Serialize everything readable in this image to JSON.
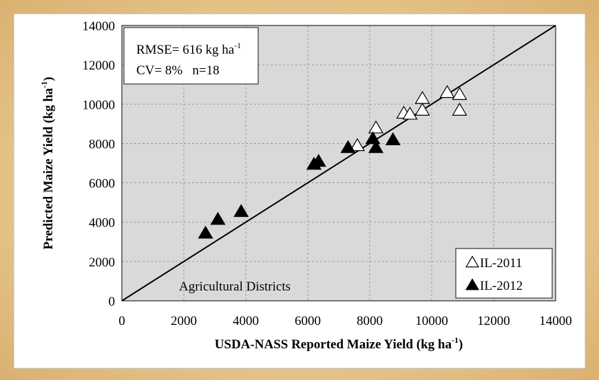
{
  "chart_data": {
    "type": "scatter",
    "x_label": {
      "text": "USDA-NASS Reported Maize Yield (kg ha",
      "sup": "-1",
      "tail": ")"
    },
    "y_label": {
      "text": "Predicted Maize Yield (kg ha",
      "sup": "-1",
      "tail": ")"
    },
    "annotations": [
      {
        "text": "RMSE= 616 kg ha",
        "sup": "-1"
      },
      {
        "text": "CV= 8%   n=18"
      },
      {
        "text": "Agricultural Districts"
      }
    ],
    "xlim": [
      0,
      14000
    ],
    "ylim": [
      0,
      14000
    ],
    "xticks": [
      0,
      2000,
      4000,
      6000,
      8000,
      10000,
      12000,
      14000
    ],
    "yticks": [
      0,
      2000,
      4000,
      6000,
      8000,
      10000,
      12000,
      14000
    ],
    "grid": true,
    "identity_line": true,
    "legend": "lower right",
    "series": [
      {
        "name": "IL-2011",
        "color": "#000000",
        "marker": "open",
        "x": [
          7600,
          8200,
          9100,
          9300,
          9700,
          9700,
          10500,
          10900,
          10900
        ],
        "values": [
          7900,
          8800,
          9550,
          9500,
          9700,
          10300,
          10600,
          10500,
          9700
        ]
      },
      {
        "name": "IL-2012",
        "color": "#000000",
        "marker": "filled",
        "x": [
          2700,
          3100,
          3850,
          6200,
          6350,
          7300,
          8100,
          8200,
          8750
        ],
        "values": [
          3450,
          4150,
          4550,
          6950,
          7100,
          7800,
          8250,
          7800,
          8200
        ]
      }
    ]
  }
}
